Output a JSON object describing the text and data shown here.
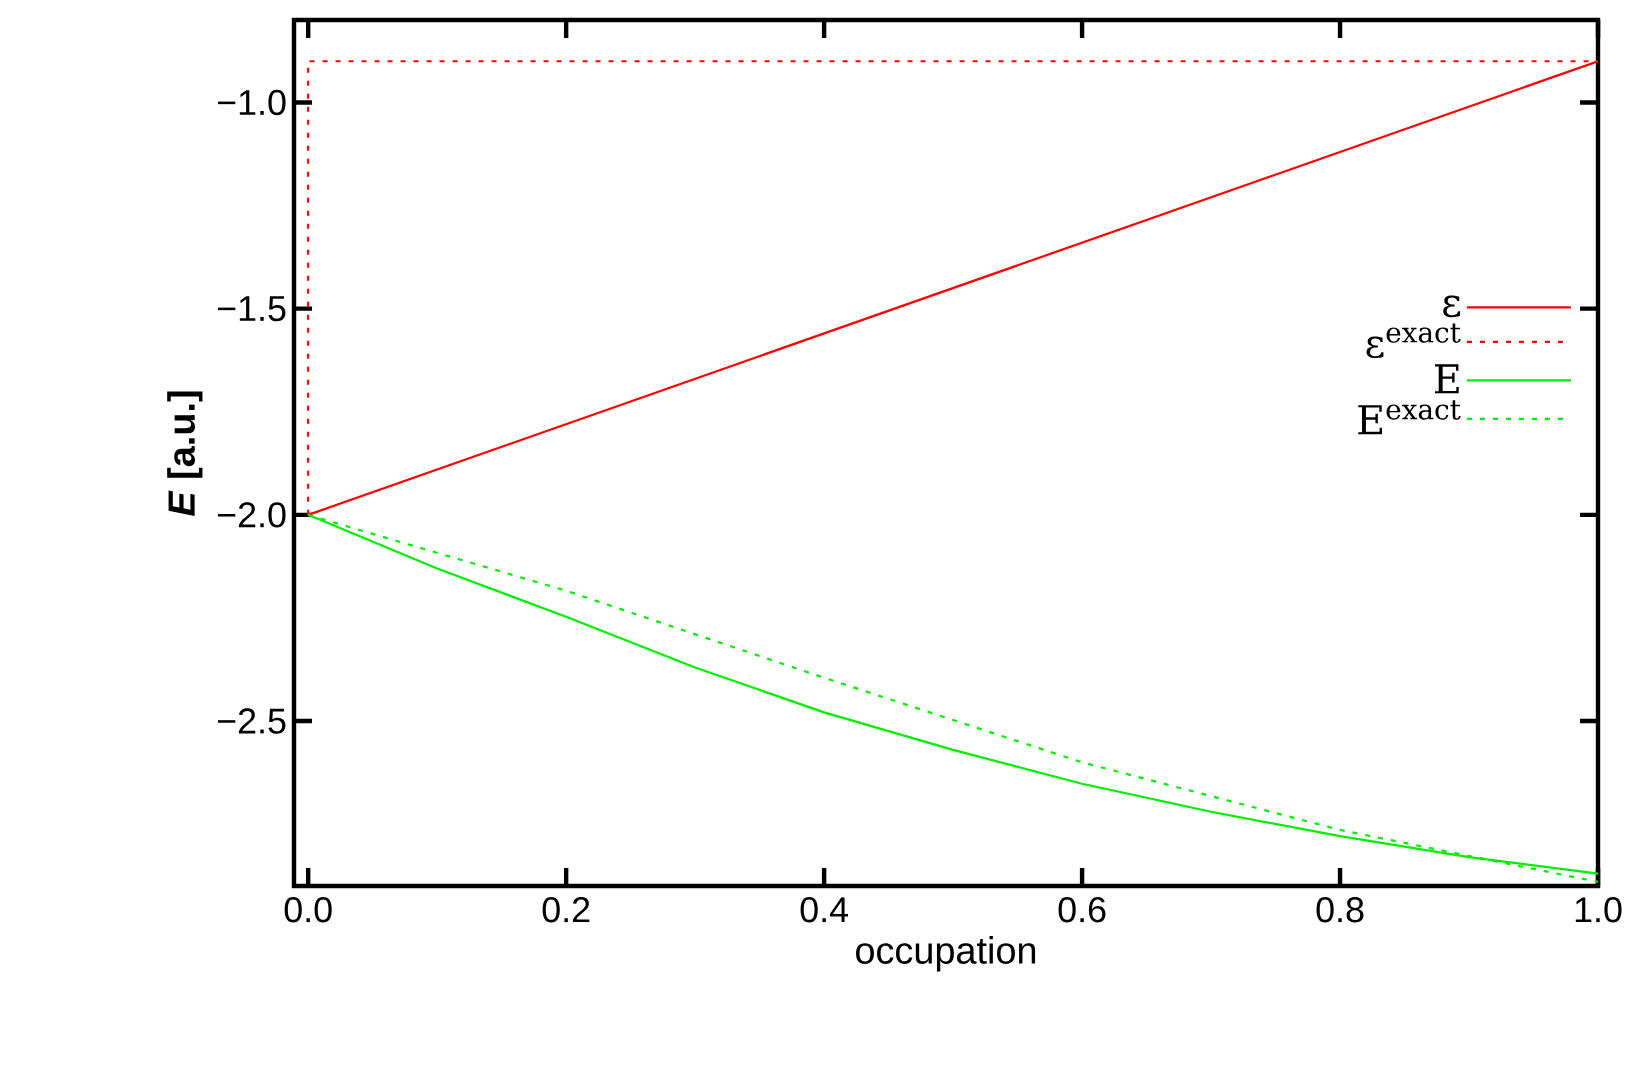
{
  "chart_data": {
    "type": "line",
    "xlabel": "occupation",
    "ylabel": "*E* [a.u.]",
    "xlim": [
      -0.011,
      1.0
    ],
    "ylim": [
      -2.9,
      -0.8
    ],
    "xticks": [
      {
        "value": 0,
        "label": "0.0"
      },
      0.2,
      0.4,
      0.6,
      0.8,
      {
        "value": 1,
        "label": "1.0"
      }
    ],
    "yticks": [
      {
        "value": -2.5,
        "label": "−2.5"
      },
      {
        "value": -2.0,
        "label": "−2.0"
      },
      {
        "value": -1.5,
        "label": "−1.5"
      },
      {
        "value": -1.0,
        "label": "−1.0"
      }
    ],
    "legend": "right",
    "grid": false,
    "series": [
      {
        "name": "ε",
        "color": "#ff0000",
        "line_style": "solid",
        "x": [
          0,
          1
        ],
        "values": [
          -2.0,
          -0.9
        ]
      },
      {
        "name": "ε$^{exact}$",
        "color": "#ff0000",
        "line_style": "dotted",
        "x": [
          0,
          0,
          1
        ],
        "values": [
          -2.0,
          -0.9,
          -0.9
        ]
      },
      {
        "name": "E",
        "color": "#00ee00",
        "line_style": "solid",
        "x": [
          0,
          0.1,
          0.2,
          0.3,
          0.4,
          0.5,
          0.6,
          0.7,
          0.8,
          0.9,
          1.0
        ],
        "values": [
          -2.0,
          -2.13,
          -2.247,
          -2.37,
          -2.479,
          -2.57,
          -2.652,
          -2.72,
          -2.779,
          -2.83,
          -2.87
        ]
      },
      {
        "name": "E$^{exact}$",
        "color": "#00ee00",
        "line_style": "dotted",
        "x": [
          0,
          0.2,
          0.4,
          0.6,
          0.8,
          1.0
        ],
        "values": [
          -2.0,
          -2.184,
          -2.395,
          -2.6,
          -2.764,
          -2.89
        ]
      }
    ]
  }
}
